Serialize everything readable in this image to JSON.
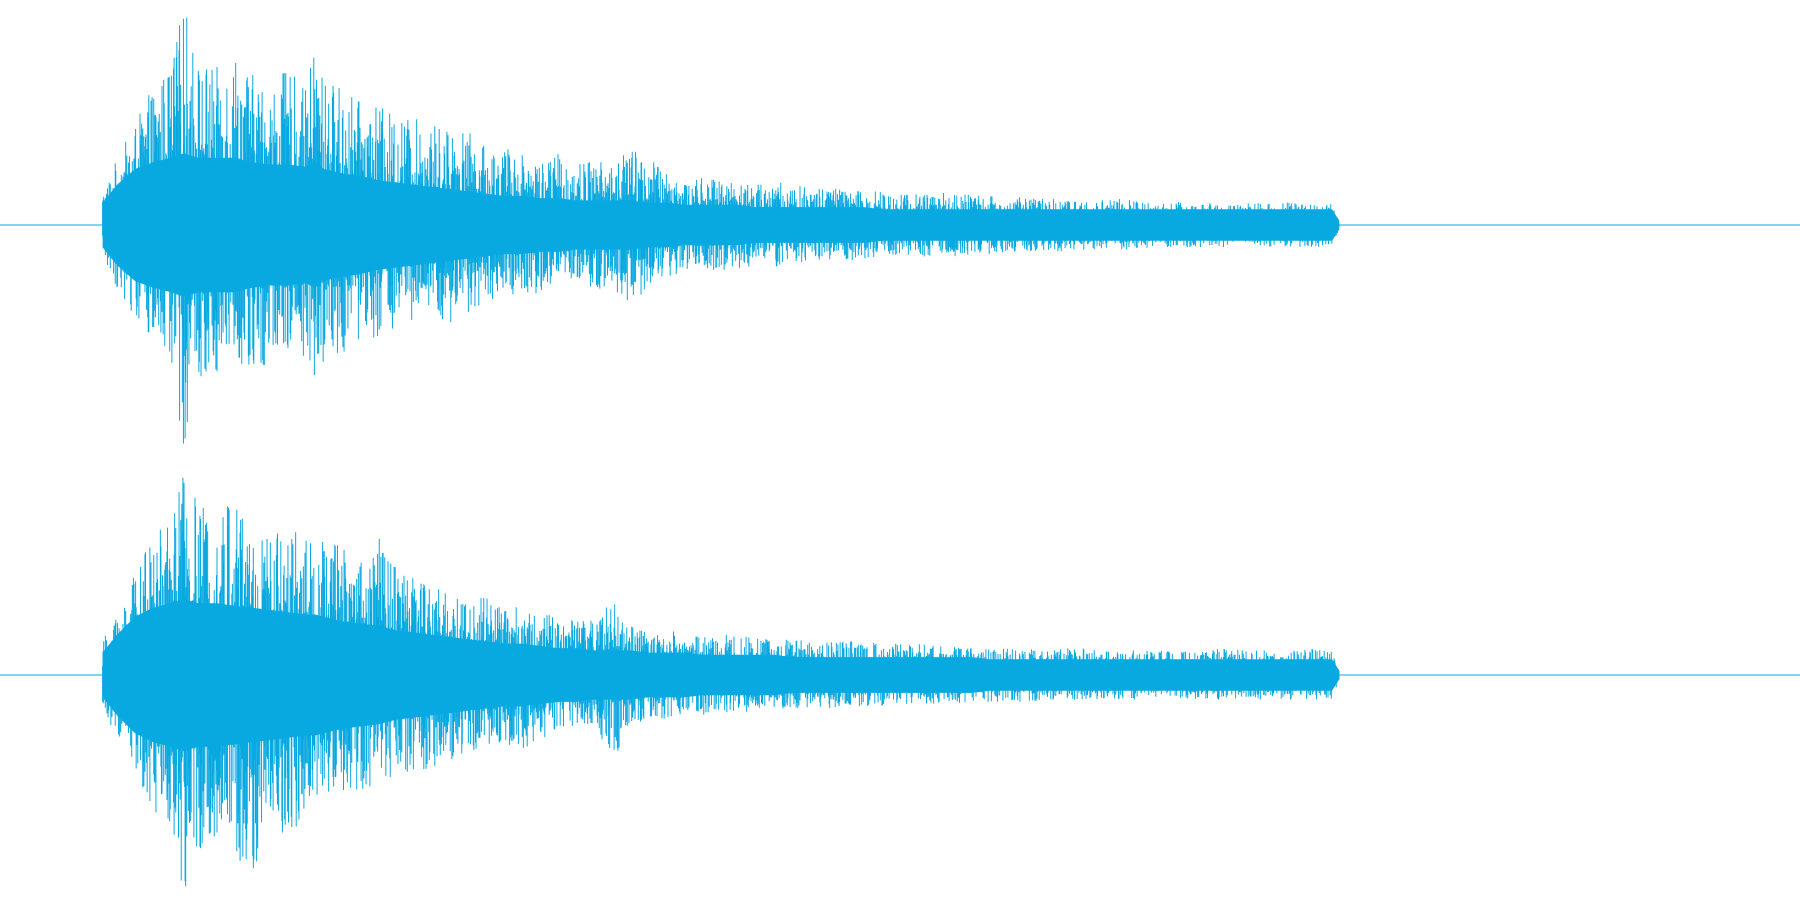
{
  "chart_data": {
    "type": "line",
    "subtype": "audio-waveform-envelope",
    "title": "",
    "xlabel": "",
    "ylabel": "",
    "grid": false,
    "legend": "none",
    "colors": {
      "waveform": "#08a8e0",
      "baseline": "#08a8e0",
      "background": "#ffffff"
    },
    "x_range": [
      0,
      100
    ],
    "y_range": [
      -1,
      1
    ],
    "sound_start": 5.7,
    "sound_end": 74.4,
    "channels": [
      {
        "x": [
          5.7,
          6.5,
          7.5,
          8.5,
          9.5,
          10.2,
          11,
          12,
          13,
          14,
          15,
          16,
          17,
          17.5,
          18,
          19,
          20,
          21,
          22,
          23,
          24,
          25,
          26,
          27,
          28,
          29,
          30,
          31,
          32,
          33,
          34,
          35,
          36,
          37,
          38,
          39,
          40,
          41,
          42,
          43,
          44,
          45,
          46,
          47,
          48,
          49,
          50,
          51,
          52,
          53,
          54,
          55,
          56,
          57,
          58,
          59,
          60,
          61,
          62,
          63,
          64,
          65,
          66,
          67,
          68,
          69,
          70,
          71,
          72,
          73,
          74,
          74.4
        ],
        "peak_upper": [
          0.15,
          0.3,
          0.45,
          0.62,
          0.72,
          1.0,
          0.75,
          0.7,
          0.8,
          0.68,
          0.62,
          0.7,
          0.6,
          0.85,
          0.65,
          0.63,
          0.55,
          0.53,
          0.5,
          0.48,
          0.45,
          0.45,
          0.42,
          0.35,
          0.35,
          0.33,
          0.3,
          0.32,
          0.28,
          0.3,
          0.27,
          0.35,
          0.3,
          0.25,
          0.2,
          0.22,
          0.2,
          0.21,
          0.18,
          0.2,
          0.18,
          0.17,
          0.18,
          0.16,
          0.15,
          0.16,
          0.15,
          0.14,
          0.15,
          0.14,
          0.14,
          0.13,
          0.12,
          0.13,
          0.12,
          0.12,
          0.11,
          0.11,
          0.12,
          0.11,
          0.1,
          0.11,
          0.1,
          0.1,
          0.1,
          0.1,
          0.1,
          0.1,
          0.1,
          0.1,
          0.1,
          0.02
        ],
        "peak_lower": [
          -0.15,
          -0.28,
          -0.42,
          -0.55,
          -0.65,
          -1.0,
          -0.7,
          -0.66,
          -0.55,
          -0.72,
          -0.62,
          -0.55,
          -0.6,
          -0.85,
          -0.6,
          -0.58,
          -0.52,
          -0.5,
          -0.48,
          -0.45,
          -0.4,
          -0.48,
          -0.4,
          -0.35,
          -0.3,
          -0.32,
          -0.3,
          -0.28,
          -0.26,
          -0.3,
          -0.27,
          -0.4,
          -0.3,
          -0.25,
          -0.2,
          -0.22,
          -0.2,
          -0.21,
          -0.18,
          -0.19,
          -0.18,
          -0.17,
          -0.16,
          -0.16,
          -0.15,
          -0.15,
          -0.14,
          -0.14,
          -0.14,
          -0.14,
          -0.13,
          -0.13,
          -0.12,
          -0.12,
          -0.12,
          -0.12,
          -0.11,
          -0.11,
          -0.11,
          -0.11,
          -0.1,
          -0.1,
          -0.1,
          -0.1,
          -0.1,
          -0.1,
          -0.1,
          -0.1,
          -0.1,
          -0.1,
          -0.1,
          -0.02
        ],
        "rms": [
          0.1,
          0.18,
          0.25,
          0.28,
          0.3,
          0.32,
          0.3,
          0.3,
          0.3,
          0.28,
          0.27,
          0.27,
          0.26,
          0.28,
          0.25,
          0.23,
          0.22,
          0.2,
          0.19,
          0.18,
          0.17,
          0.16,
          0.15,
          0.14,
          0.13,
          0.13,
          0.12,
          0.12,
          0.11,
          0.11,
          0.11,
          0.11,
          0.1,
          0.1,
          0.09,
          0.09,
          0.09,
          0.09,
          0.08,
          0.08,
          0.08,
          0.08,
          0.08,
          0.08,
          0.08,
          0.07,
          0.07,
          0.07,
          0.07,
          0.07,
          0.07,
          0.07,
          0.07,
          0.07,
          0.07,
          0.07,
          0.07,
          0.07,
          0.07,
          0.07,
          0.07,
          0.07,
          0.07,
          0.07,
          0.07,
          0.07,
          0.07,
          0.07,
          0.07,
          0.07,
          0.07,
          0.02
        ]
      },
      {
        "x": [
          5.7,
          6.5,
          7.5,
          8.5,
          9.5,
          10.2,
          11,
          12,
          13,
          14,
          15,
          16,
          17,
          17.5,
          18,
          19,
          20,
          21,
          22,
          23,
          24,
          25,
          26,
          27,
          28,
          29,
          30,
          31,
          32,
          33,
          34,
          35,
          36,
          37,
          38,
          39,
          40,
          41,
          42,
          43,
          44,
          45,
          46,
          47,
          48,
          49,
          50,
          51,
          52,
          53,
          54,
          55,
          56,
          57,
          58,
          59,
          60,
          61,
          62,
          63,
          64,
          65,
          66,
          67,
          68,
          69,
          70,
          71,
          72,
          73,
          74,
          74.4
        ],
        "peak_upper": [
          0.15,
          0.3,
          0.45,
          0.62,
          0.72,
          0.92,
          0.78,
          0.7,
          0.85,
          0.7,
          0.62,
          0.72,
          0.6,
          0.68,
          0.62,
          0.6,
          0.55,
          0.62,
          0.48,
          0.5,
          0.42,
          0.38,
          0.35,
          0.36,
          0.3,
          0.33,
          0.28,
          0.27,
          0.25,
          0.25,
          0.35,
          0.22,
          0.2,
          0.2,
          0.19,
          0.18,
          0.18,
          0.18,
          0.17,
          0.17,
          0.16,
          0.16,
          0.15,
          0.15,
          0.15,
          0.14,
          0.14,
          0.14,
          0.13,
          0.13,
          0.13,
          0.12,
          0.12,
          0.12,
          0.12,
          0.12,
          0.12,
          0.11,
          0.11,
          0.11,
          0.11,
          0.11,
          0.11,
          0.11,
          0.12,
          0.11,
          0.11,
          0.11,
          0.11,
          0.12,
          0.11,
          0.02
        ],
        "peak_lower": [
          -0.15,
          -0.28,
          -0.45,
          -0.6,
          -0.72,
          -0.98,
          -0.82,
          -0.72,
          -0.78,
          -0.95,
          -0.62,
          -0.8,
          -0.6,
          -0.55,
          -0.55,
          -0.58,
          -0.52,
          -0.5,
          -0.48,
          -0.45,
          -0.42,
          -0.38,
          -0.35,
          -0.33,
          -0.3,
          -0.35,
          -0.28,
          -0.27,
          -0.25,
          -0.23,
          -0.4,
          -0.22,
          -0.2,
          -0.2,
          -0.18,
          -0.18,
          -0.17,
          -0.17,
          -0.16,
          -0.16,
          -0.15,
          -0.15,
          -0.15,
          -0.14,
          -0.14,
          -0.14,
          -0.13,
          -0.13,
          -0.13,
          -0.13,
          -0.12,
          -0.12,
          -0.12,
          -0.12,
          -0.12,
          -0.11,
          -0.11,
          -0.11,
          -0.11,
          -0.11,
          -0.11,
          -0.11,
          -0.11,
          -0.11,
          -0.11,
          -0.11,
          -0.11,
          -0.11,
          -0.11,
          -0.11,
          -0.11,
          -0.02
        ],
        "rms": [
          0.1,
          0.18,
          0.26,
          0.3,
          0.32,
          0.34,
          0.32,
          0.32,
          0.31,
          0.3,
          0.29,
          0.28,
          0.27,
          0.27,
          0.26,
          0.24,
          0.23,
          0.22,
          0.2,
          0.19,
          0.18,
          0.17,
          0.16,
          0.15,
          0.14,
          0.14,
          0.13,
          0.12,
          0.12,
          0.11,
          0.11,
          0.11,
          0.1,
          0.1,
          0.1,
          0.09,
          0.09,
          0.09,
          0.09,
          0.09,
          0.08,
          0.08,
          0.08,
          0.08,
          0.08,
          0.08,
          0.08,
          0.08,
          0.08,
          0.08,
          0.08,
          0.07,
          0.07,
          0.07,
          0.07,
          0.07,
          0.07,
          0.07,
          0.07,
          0.07,
          0.07,
          0.07,
          0.07,
          0.07,
          0.07,
          0.07,
          0.07,
          0.07,
          0.07,
          0.07,
          0.07,
          0.02
        ]
      }
    ]
  }
}
